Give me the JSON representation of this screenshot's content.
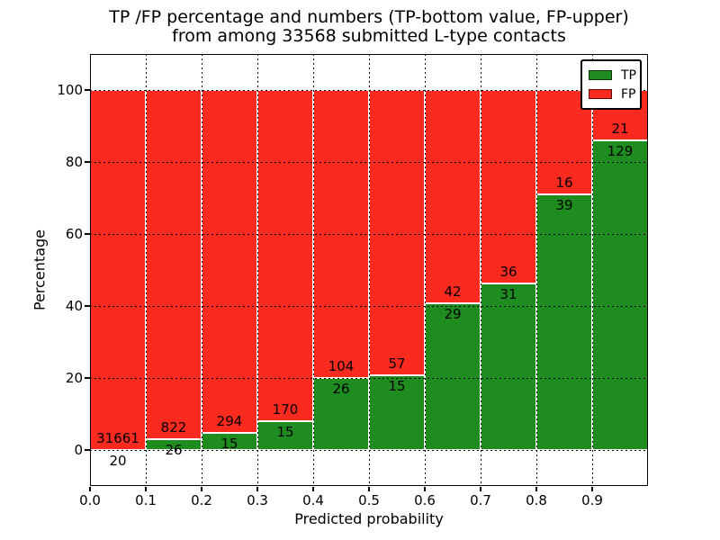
{
  "chart_data": {
    "type": "bar",
    "variant": "stacked-percentage-histogram",
    "title_line1": "TP /FP percentage and numbers (TP-bottom value, FP-upper)",
    "title_line2": "from among 33568 submitted L-type contacts",
    "total_submitted": 33568,
    "xlabel": "Predicted probability",
    "ylabel": "Percentage",
    "xlim": [
      0.0,
      1.0
    ],
    "ylim": [
      -10,
      110
    ],
    "bin_width": 0.1,
    "xticks": [
      "0.0",
      "0.1",
      "0.2",
      "0.3",
      "0.4",
      "0.5",
      "0.6",
      "0.7",
      "0.8",
      "0.9"
    ],
    "yticks": [
      0,
      20,
      40,
      60,
      80,
      100
    ],
    "grid": "dotted-black-both-axes",
    "legend_position": "upper-right",
    "categories": [
      0.0,
      0.1,
      0.2,
      0.3,
      0.4,
      0.5,
      0.6,
      0.7,
      0.8,
      0.9
    ],
    "series": [
      {
        "name": "TP",
        "counts": [
          20,
          26,
          15,
          15,
          26,
          15,
          29,
          31,
          39,
          129
        ]
      },
      {
        "name": "FP",
        "counts": [
          31661,
          822,
          294,
          170,
          104,
          57,
          42,
          36,
          16,
          21
        ]
      }
    ],
    "legend": [
      {
        "label": "TP",
        "color": "#1f8c1f"
      },
      {
        "label": "FP",
        "color": "#fa2a1e"
      }
    ],
    "colors": {
      "tp": "#1f8c1f",
      "fp": "#fa2a1e",
      "bar_edge": "#ffffff",
      "grid": "#000000",
      "text": "#000000",
      "background": "#ffffff"
    }
  }
}
